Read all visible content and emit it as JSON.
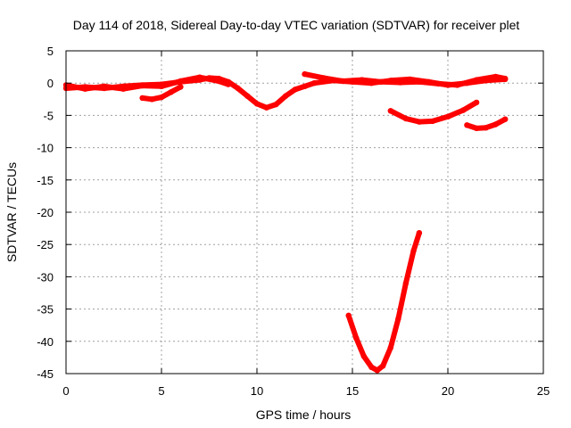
{
  "chart_data": {
    "type": "line",
    "title": "Day 114 of 2018, Sidereal Day-to-day VTEC variation (SDTVAR) for receiver plet",
    "xlabel": "GPS time / hours",
    "ylabel": "SDTVAR / TECUs",
    "xlim": [
      0,
      25
    ],
    "ylim": [
      -45,
      5
    ],
    "xticks": [
      0,
      5,
      10,
      15,
      20,
      25
    ],
    "yticks": [
      5,
      0,
      -5,
      -10,
      -15,
      -20,
      -25,
      -30,
      -35,
      -40,
      -45
    ],
    "grid": true,
    "legend": "none",
    "color": "#ff0000",
    "series": [
      {
        "x": [
          0.0,
          1.0,
          2.0,
          3.0,
          4.0,
          5.0,
          6.0,
          7.0,
          7.5,
          8.0,
          8.5,
          9.0,
          9.5,
          10.0,
          10.5,
          11.0,
          11.5,
          12.0,
          12.5,
          13.0,
          14.0,
          15.0,
          16.0,
          17.0,
          18.0,
          19.0,
          20.0,
          21.0,
          22.0,
          23.0
        ],
        "y": [
          -0.8,
          -0.6,
          -0.8,
          -0.5,
          -0.3,
          -0.2,
          0.2,
          0.5,
          0.8,
          0.7,
          0.2,
          -0.8,
          -2.0,
          -3.2,
          -3.8,
          -3.3,
          -2.0,
          -1.0,
          -0.5,
          0.0,
          0.4,
          0.2,
          0.0,
          0.4,
          0.6,
          0.2,
          -0.3,
          0.0,
          0.4,
          0.6
        ]
      },
      {
        "x": [
          0.0,
          1.0,
          2.0,
          3.0,
          4.0,
          5.0,
          6.0,
          7.0,
          8.0,
          8.5
        ],
        "y": [
          -0.3,
          -0.9,
          -0.5,
          -0.9,
          -0.4,
          -0.5,
          0.3,
          0.9,
          0.3,
          -0.2
        ]
      },
      {
        "x": [
          4.0,
          4.5,
          5.0,
          5.5,
          6.0
        ],
        "y": [
          -2.3,
          -2.5,
          -2.2,
          -1.4,
          -0.6
        ]
      },
      {
        "x": [
          12.5,
          13.5,
          14.5,
          15.5,
          16.5,
          17.5,
          18.5,
          19.5,
          20.5,
          21.5,
          22.5,
          23.0
        ],
        "y": [
          1.4,
          0.8,
          0.3,
          0.5,
          0.2,
          0.1,
          0.2,
          -0.1,
          -0.3,
          0.5,
          1.0,
          0.7
        ]
      },
      {
        "x": [
          17.0,
          17.8,
          18.5,
          19.2,
          20.0,
          20.8,
          21.5
        ],
        "y": [
          -4.3,
          -5.5,
          -6.0,
          -5.9,
          -5.2,
          -4.2,
          -3.0
        ]
      },
      {
        "x": [
          21.0,
          21.5,
          22.0,
          22.5,
          23.0
        ],
        "y": [
          -6.5,
          -7.0,
          -6.9,
          -6.4,
          -5.6
        ]
      },
      {
        "x": [
          14.8,
          15.2,
          15.6,
          16.0,
          16.3,
          16.6,
          17.0,
          17.4,
          17.8,
          18.2,
          18.5
        ],
        "y": [
          -36.0,
          -39.5,
          -42.3,
          -44.0,
          -44.5,
          -43.8,
          -41.0,
          -36.5,
          -31.0,
          -26.0,
          -23.2
        ]
      }
    ]
  }
}
